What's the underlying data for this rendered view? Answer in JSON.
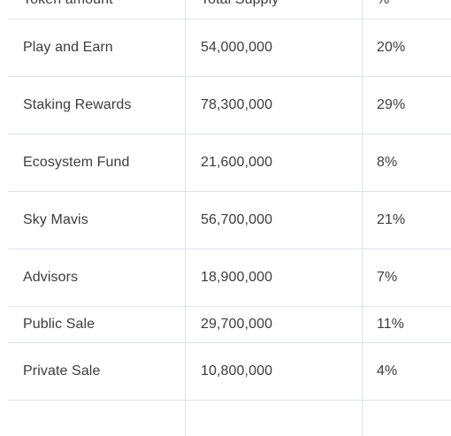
{
  "table": {
    "headers": [
      "Token amount",
      "Total Supply",
      "%"
    ],
    "rows": [
      {
        "name": "Play and Earn",
        "supply": "54,000,000",
        "percent": "20%"
      },
      {
        "name": "Staking Rewards",
        "supply": "78,300,000",
        "percent": "29%"
      },
      {
        "name": "Ecosystem Fund",
        "supply": "21,600,000",
        "percent": "8%"
      },
      {
        "name": "Sky Mavis",
        "supply": "56,700,000",
        "percent": "21%"
      },
      {
        "name": "Advisors",
        "supply": "18,900,000",
        "percent": "7%"
      },
      {
        "name": "Public Sale",
        "supply": "29,700,000",
        "percent": "11%"
      },
      {
        "name": "Private Sale",
        "supply": "10,800,000",
        "percent": "4%"
      }
    ]
  }
}
